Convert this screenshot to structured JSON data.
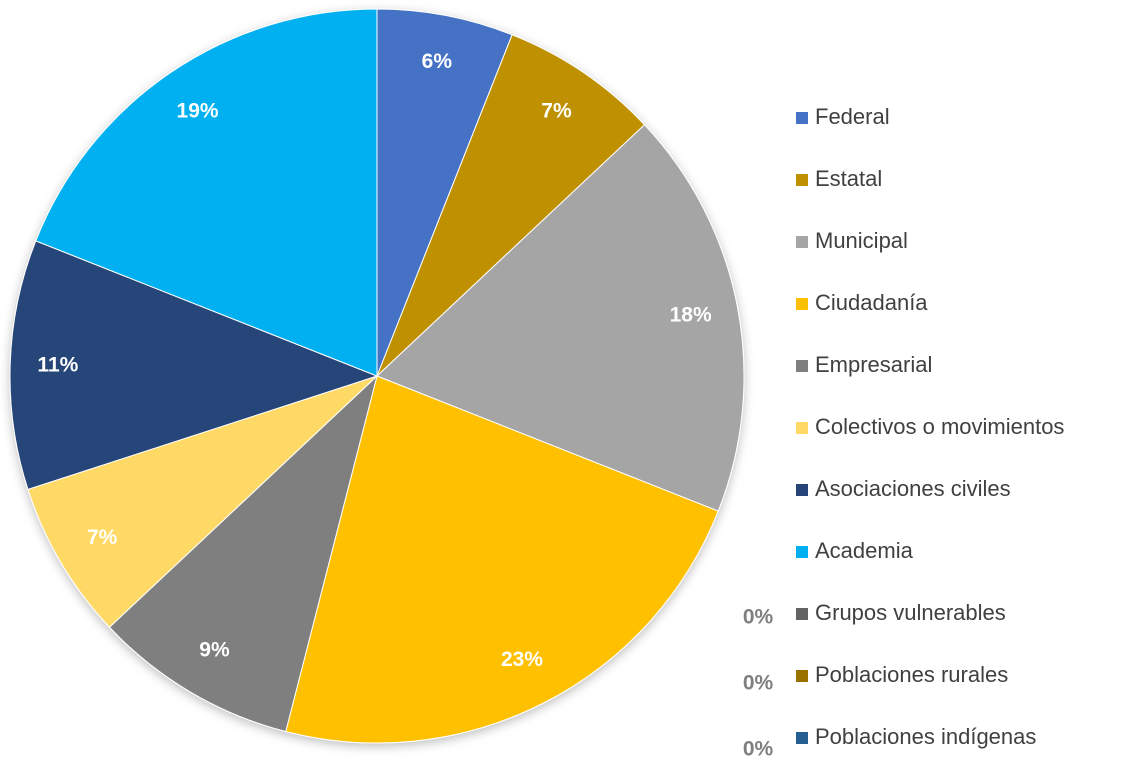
{
  "chart_data": {
    "type": "pie",
    "categories": [
      "Federal",
      "Estatal",
      "Municipal",
      "Ciudadanía",
      "Empresarial",
      "Colectivos o movimientos",
      "Asociaciones civiles",
      "Academia",
      "Grupos vulnerables",
      "Poblaciones rurales",
      "Poblaciones indígenas"
    ],
    "values": [
      6,
      7,
      18,
      23,
      9,
      7,
      11,
      19,
      0,
      0,
      0
    ],
    "value_labels": [
      "6%",
      "7%",
      "18%",
      "23%",
      "9%",
      "7%",
      "11%",
      "19%",
      "0%",
      "0%",
      "0%"
    ],
    "colors": [
      "#4472c4",
      "#bf9000",
      "#a5a5a5",
      "#ffc000",
      "#7f7f7f",
      "#ffd966",
      "#264478",
      "#00b0f0",
      "#636363",
      "#997300",
      "#255e91"
    ],
    "legend": "right"
  }
}
